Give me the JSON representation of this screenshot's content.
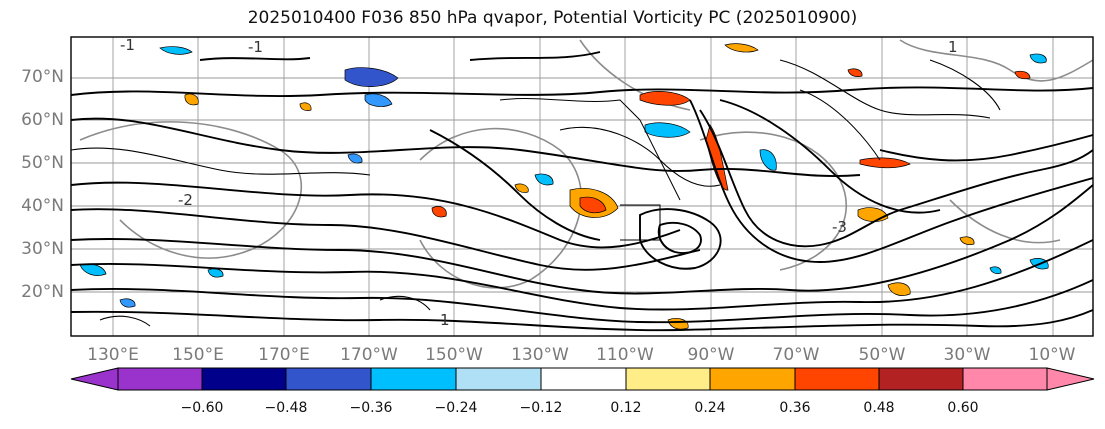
{
  "title": "2025010400 F036 850 hPa qvapor, Potential Vorticity PC (2025010900)",
  "map": {
    "lat_labels": [
      "70°N",
      "60°N",
      "50°N",
      "40°N",
      "30°N",
      "20°N"
    ],
    "lon_labels": [
      "130°E",
      "150°E",
      "170°E",
      "170°W",
      "150°W",
      "130°W",
      "110°W",
      "90°W",
      "70°W",
      "50°W",
      "30°W",
      "10°W"
    ],
    "contour_labels": [
      "-1",
      "1",
      "-2",
      "-3"
    ]
  },
  "colorbar": {
    "colors": [
      "#9933cc",
      "#00008b",
      "#3355cc",
      "#00bfff",
      "#b0e0f5",
      "#ffffff",
      "#ffee88",
      "#ffa500",
      "#ff4500",
      "#b22222",
      "#ff88aa"
    ],
    "ticks": [
      "−0.60",
      "−0.48",
      "−0.36",
      "−0.24",
      "−0.12",
      "0.12",
      "0.24",
      "0.36",
      "0.48",
      "0.60"
    ],
    "extend_low_color": "#9933cc",
    "extend_high_color": "#ff88aa"
  }
}
